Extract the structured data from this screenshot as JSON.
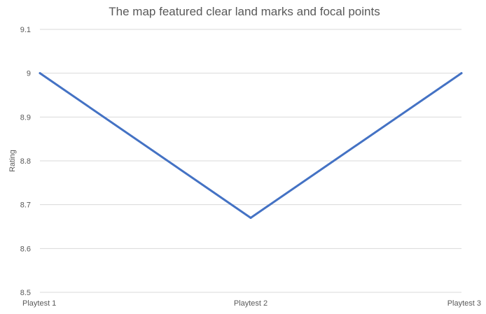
{
  "chart_data": {
    "type": "line",
    "title": "The map featured clear land marks and focal points",
    "xlabel": "",
    "ylabel": "Rating",
    "categories": [
      "Playtest 1",
      "Playtest 2",
      "Playtest 3"
    ],
    "series": [
      {
        "values": [
          9.0,
          8.67,
          9.0
        ],
        "color": "#4472c4"
      }
    ],
    "ylim": [
      8.5,
      9.1
    ],
    "yticks": [
      "8.5",
      "8.6",
      "8.7",
      "8.8",
      "8.9",
      "9",
      "9.1"
    ],
    "grid": true,
    "legend": "none",
    "colors": {
      "gridline": "#d9d9d9",
      "text": "#595959",
      "title": "#595959"
    }
  }
}
